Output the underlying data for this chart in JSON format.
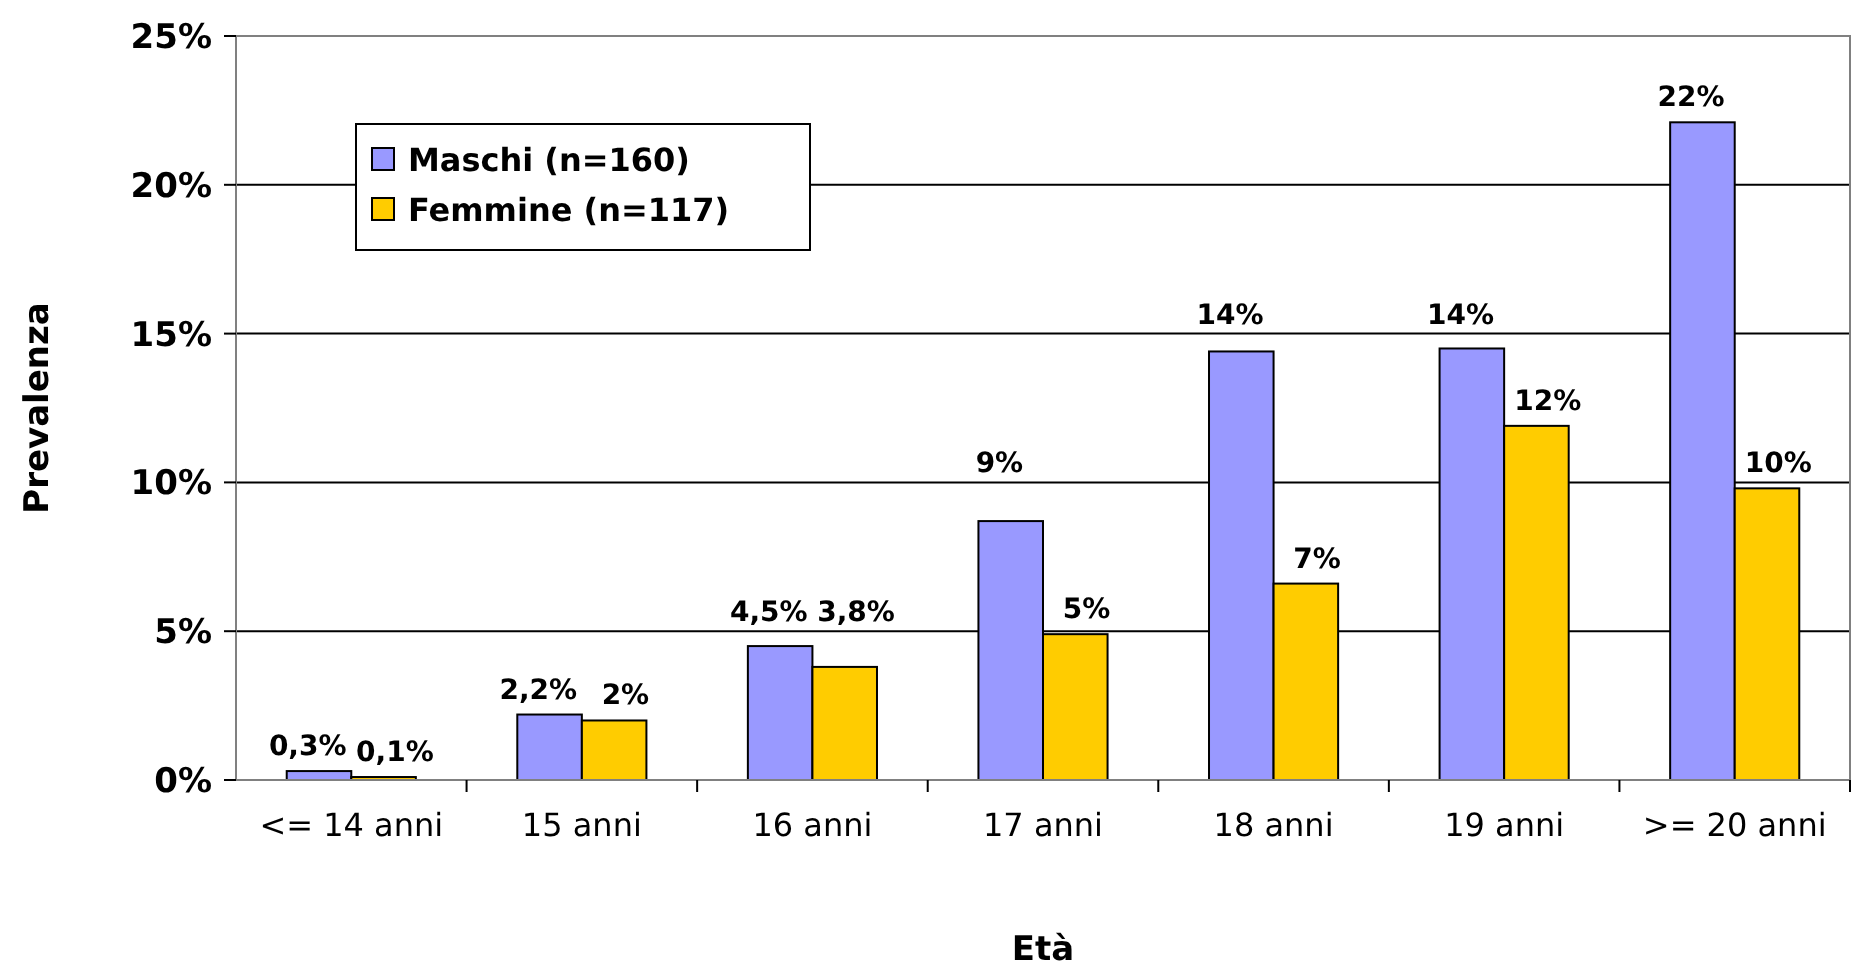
{
  "chart_data": {
    "type": "bar",
    "xlabel": "Età",
    "ylabel": "Prevalenza",
    "categories": [
      "<= 14 anni",
      "15 anni",
      "16 anni",
      "17 anni",
      "18 anni",
      "19 anni",
      ">= 20 anni"
    ],
    "series": [
      {
        "name": "Maschi (n=160)",
        "color": "#9999ff",
        "values": [
          0.3,
          2.2,
          4.5,
          8.7,
          14.4,
          14.5,
          22.1
        ],
        "value_labels": [
          "0,3%",
          "2,2%",
          "4,5%",
          "9%",
          "14%",
          "14%",
          "22%"
        ]
      },
      {
        "name": "Femmine (n=117)",
        "color": "#ffcc00",
        "values": [
          0.1,
          2.0,
          3.8,
          4.9,
          6.6,
          11.9,
          9.8
        ],
        "value_labels": [
          "0,1%",
          "2%",
          "3,8%",
          "5%",
          "7%",
          "12%",
          "10%"
        ]
      }
    ],
    "ylim": [
      0,
      25
    ],
    "yticks": [
      {
        "value": 0,
        "label": "0%"
      },
      {
        "value": 5,
        "label": "5%"
      },
      {
        "value": 10,
        "label": "10%"
      },
      {
        "value": 15,
        "label": "15%"
      },
      {
        "value": 20,
        "label": "20%"
      },
      {
        "value": 25,
        "label": "25%"
      }
    ],
    "grid": "y",
    "legend": "top left"
  }
}
